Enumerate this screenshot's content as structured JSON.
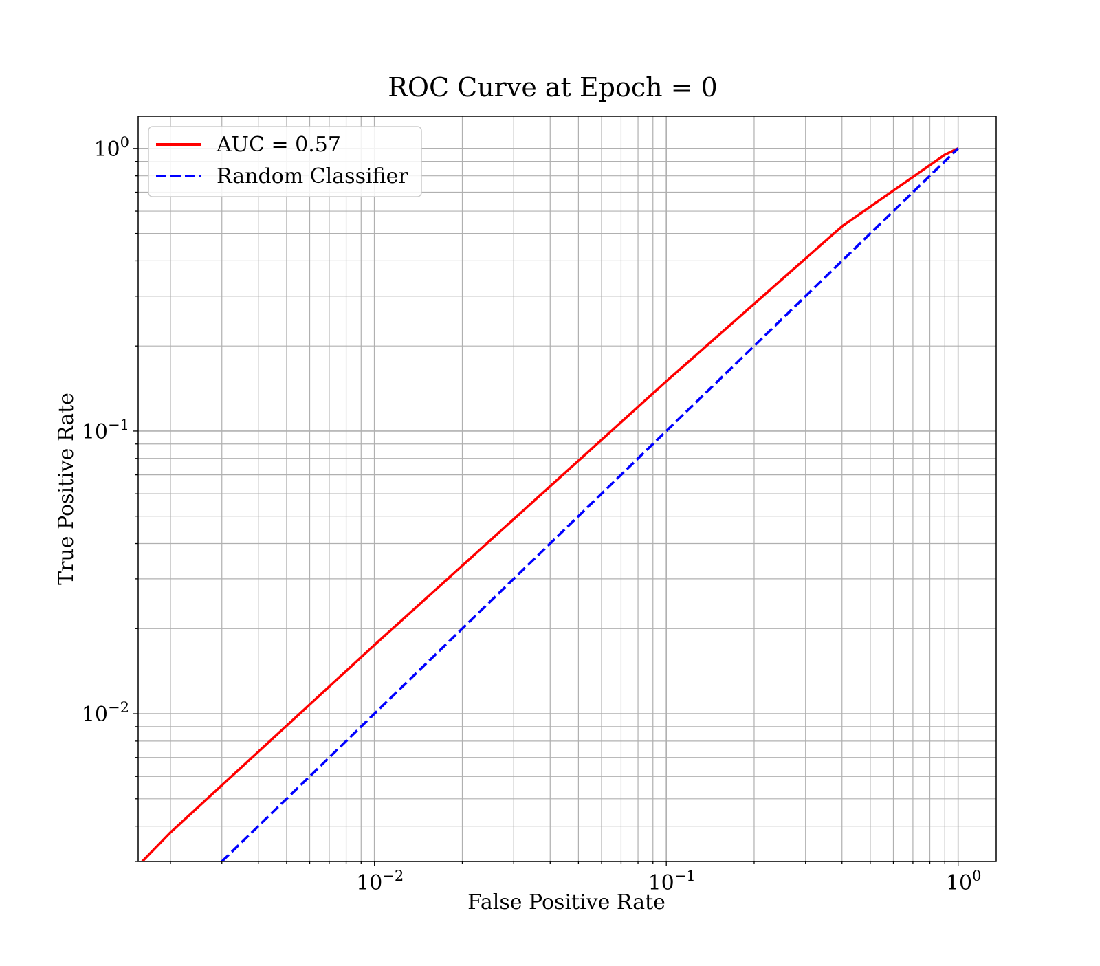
{
  "chart_data": {
    "type": "line",
    "title": "ROC Curve at Epoch = 0",
    "xlabel": "False Positive Rate",
    "ylabel": "True Positive Rate",
    "xscale": "log",
    "yscale": "log",
    "xlim": [
      0.00155,
      1.35
    ],
    "ylim": [
      0.003,
      1.3
    ],
    "grid": true,
    "grid_minor": true,
    "legend_position": "upper-left",
    "x_ticks": [
      {
        "value": 0.01,
        "base": "10",
        "exp": "−2"
      },
      {
        "value": 0.1,
        "base": "10",
        "exp": "−1"
      },
      {
        "value": 1,
        "base": "10",
        "exp": "0"
      }
    ],
    "y_ticks": [
      {
        "value": 0.01,
        "base": "10",
        "exp": "−2"
      },
      {
        "value": 0.1,
        "base": "10",
        "exp": "−1"
      },
      {
        "value": 1,
        "base": "10",
        "exp": "0"
      }
    ],
    "series": [
      {
        "name": "AUC = 0.57",
        "color": "#ff0000",
        "style": "solid",
        "points": [
          [
            0.0016,
            0.003
          ],
          [
            0.002,
            0.0038
          ],
          [
            0.01,
            0.0175
          ],
          [
            0.1,
            0.15
          ],
          [
            0.4,
            0.53
          ],
          [
            0.9,
            0.95
          ],
          [
            1.0,
            1.0
          ]
        ]
      },
      {
        "name": "Random Classifier",
        "color": "#0000ff",
        "style": "dashed",
        "points": [
          [
            0.003,
            0.003
          ],
          [
            1.0,
            1.0
          ]
        ]
      }
    ]
  }
}
